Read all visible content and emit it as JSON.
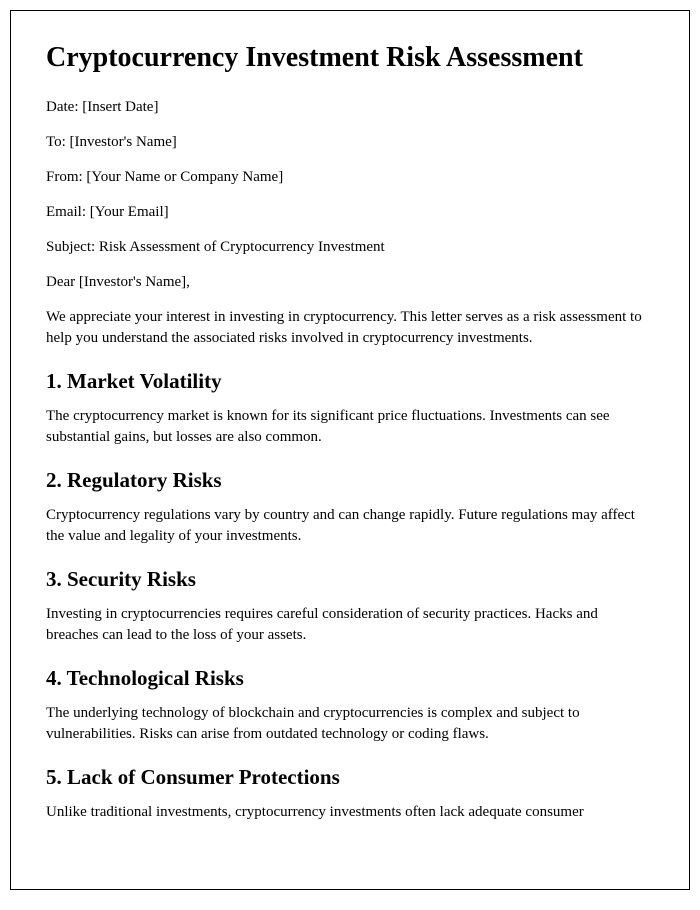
{
  "title": "Cryptocurrency Investment Risk Assessment",
  "meta": {
    "date": "Date: [Insert Date]",
    "to": "To: [Investor's Name]",
    "from": "From: [Your Name or Company Name]",
    "email": "Email: [Your Email]",
    "subject": "Subject: Risk Assessment of Cryptocurrency Investment"
  },
  "salutation": "Dear [Investor's Name],",
  "intro": "We appreciate your interest in investing in cryptocurrency. This letter serves as a risk assessment to help you understand the associated risks involved in cryptocurrency investments.",
  "sections": [
    {
      "heading": "1. Market Volatility",
      "body": "The cryptocurrency market is known for its significant price fluctuations. Investments can see substantial gains, but losses are also common."
    },
    {
      "heading": "2. Regulatory Risks",
      "body": "Cryptocurrency regulations vary by country and can change rapidly. Future regulations may affect the value and legality of your investments."
    },
    {
      "heading": "3. Security Risks",
      "body": "Investing in cryptocurrencies requires careful consideration of security practices. Hacks and breaches can lead to the loss of your assets."
    },
    {
      "heading": "4. Technological Risks",
      "body": "The underlying technology of blockchain and cryptocurrencies is complex and subject to vulnerabilities. Risks can arise from outdated technology or coding flaws."
    },
    {
      "heading": "5. Lack of Consumer Protections",
      "body": "Unlike traditional investments, cryptocurrency investments often lack adequate consumer"
    }
  ]
}
